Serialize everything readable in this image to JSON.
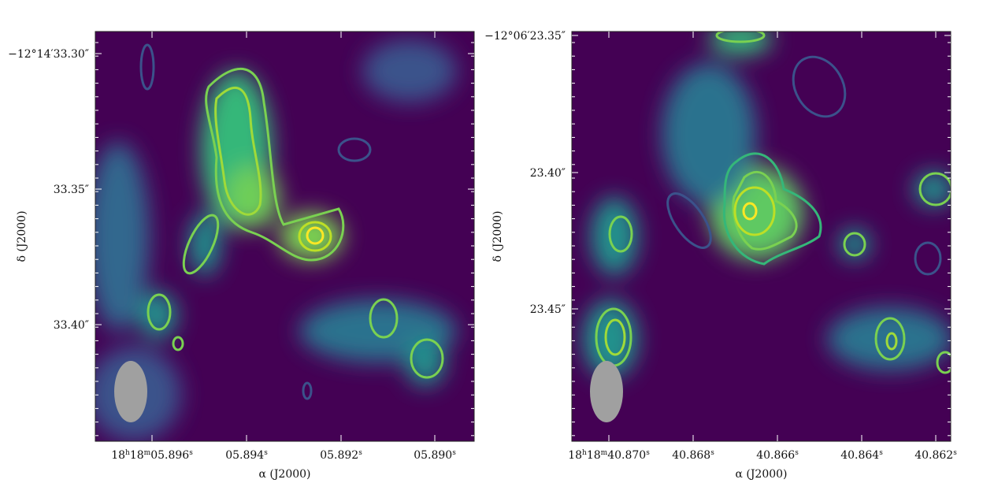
{
  "panels": [
    {
      "yticks": [
        "−12°14′33.30″",
        "33.35″",
        "33.40″"
      ],
      "xticks": [
        [
          "18",
          "h",
          "18",
          "m",
          "05.896",
          "s"
        ],
        [
          "05.894",
          "s"
        ],
        [
          "05.892",
          "s"
        ],
        [
          "05.890",
          "s"
        ]
      ],
      "xlabel": "α (J2000)",
      "ylabel": "δ (J2000)"
    },
    {
      "yticks": [
        "−12°06′23.35″",
        "23.40″",
        "23.45″"
      ],
      "xticks": [
        [
          "18",
          "h",
          "18",
          "m",
          "40.870",
          "s"
        ],
        [
          "40.868",
          "s"
        ],
        [
          "40.866",
          "s"
        ],
        [
          "40.864",
          "s"
        ],
        [
          "40.862",
          "s"
        ]
      ],
      "xlabel": "α (J2000)",
      "ylabel": "δ (J2000)"
    }
  ]
}
